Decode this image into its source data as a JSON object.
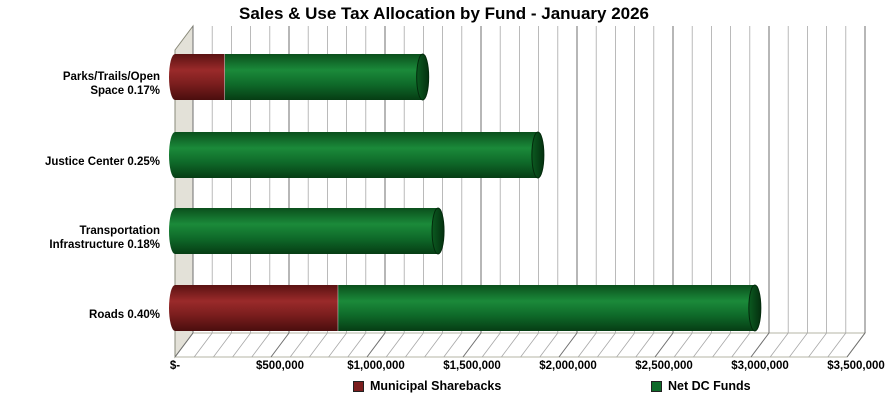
{
  "chart_data": {
    "type": "bar",
    "orientation": "horizontal",
    "stacked": true,
    "title": "Sales & Use Tax Allocation by Fund - January 2026",
    "categories": [
      "Parks/Trails/Open\nSpace 0.17%",
      "Justice Center 0.25%",
      "Transportation\nInfrastructure 0.18%",
      "Roads 0.40%"
    ],
    "series": [
      {
        "name": "Municipal Sharebacks",
        "color": "#7b1e1e",
        "values": [
          260000,
          0,
          0,
          850000
        ]
      },
      {
        "name": "Net DC Funds",
        "color": "#0f6b2a",
        "values": [
          1030000,
          1890000,
          1370000,
          2170000
        ]
      }
    ],
    "xlim": [
      0,
      3500000
    ],
    "tick_values": [
      0,
      500000,
      1000000,
      1500000,
      2000000,
      2500000,
      3000000,
      3500000
    ],
    "tick_labels": [
      "$-",
      "$500,000",
      "$1,000,000",
      "$1,500,000",
      "$2,000,000",
      "$2,500,000",
      "$3,000,000",
      "$3,500,000"
    ],
    "grid": true,
    "legend_position": "bottom"
  }
}
